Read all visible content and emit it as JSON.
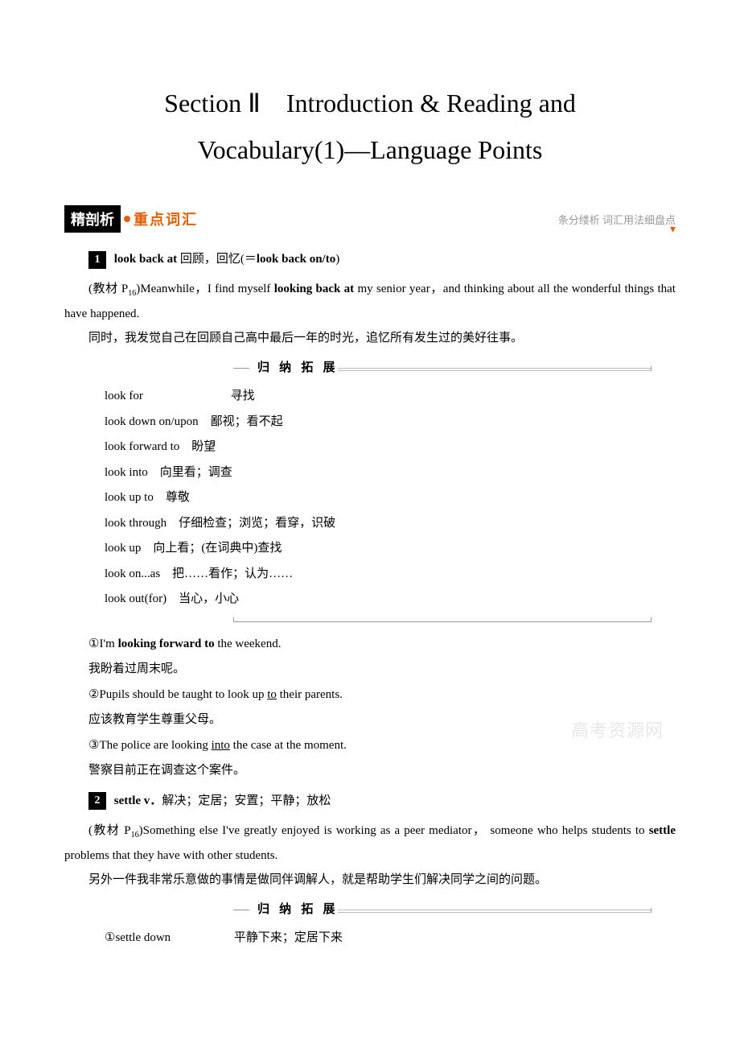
{
  "title_line1": "Section Ⅱ　Introduction & Reading and",
  "title_line2": "Vocabulary(1)—Language Points",
  "header": {
    "left_black": "精剖析",
    "orange": "重点词汇",
    "right_gray": "条分缕析 词汇用法细盘点"
  },
  "colors": {
    "orange": "#e06000",
    "gray_text": "#999999",
    "black": "#000000",
    "white": "#ffffff",
    "watermark": "#dddddd"
  },
  "entry1": {
    "num": "1",
    "head_bold1": "look back at",
    "head_cn": " 回顾，回忆(＝",
    "head_bold2": "look back on/to",
    "head_end": ")",
    "src_prefix": "(教材 P",
    "src_sub": "16",
    "src_after": ")Meanwhile，I find myself ",
    "src_bold": "looking back at",
    "src_tail": " my senior year，and thinking about all the wonderful things that have happened.",
    "trans": "同时，我发觉自己在回顾自己高中最后一年的时光，追忆所有发生过的美好往事。",
    "expand_title": "归 纳 拓 展",
    "expand": [
      "look for　　　　　　　 寻找",
      "look down on/upon　鄙视；看不起",
      "look forward to　盼望",
      "look into　向里看；调查",
      "look up to　尊敬",
      "look through　仔细检查；浏览；看穿，识破",
      "look up　向上看；(在词典中)查找",
      "look on...as　把……看作；认为……",
      "look out(for)　当心，小心"
    ],
    "examples": [
      {
        "pre": "①I'm ",
        "bold": "looking forward to",
        "post": " the weekend.",
        "ul": ""
      },
      {
        "pre": "我盼着过周末呢。",
        "bold": "",
        "post": "",
        "ul": ""
      },
      {
        "pre": "②Pupils should be taught to look up ",
        "bold": "",
        "post": " their parents.",
        "ul": "to"
      },
      {
        "pre": "应该教育学生尊重父母。",
        "bold": "",
        "post": "",
        "ul": ""
      },
      {
        "pre": "③The police are looking ",
        "bold": "",
        "post": " the case at the moment.",
        "ul": "into"
      },
      {
        "pre": "警察目前正在调查这个案件。",
        "bold": "",
        "post": "",
        "ul": ""
      }
    ]
  },
  "entry2": {
    "num": "2",
    "head_bold": "settle v．",
    "head_cn": "解决；定居；安置；平静；放松",
    "src_prefix": "(教材 P",
    "src_sub": "16",
    "src_after": ")Something else I've greatly enjoyed is working as a peer mediator， someone who helps students to ",
    "src_bold": "settle",
    "src_tail": " problems that they have with other students.",
    "trans": "另外一件我非常乐意做的事情是做同伴调解人，就是帮助学生们解决同学之间的问题。",
    "expand_title": "归 纳 拓 展",
    "expand": [
      "①settle down 　　　　　平静下来；定居下来"
    ]
  },
  "watermark": "高考资源网"
}
